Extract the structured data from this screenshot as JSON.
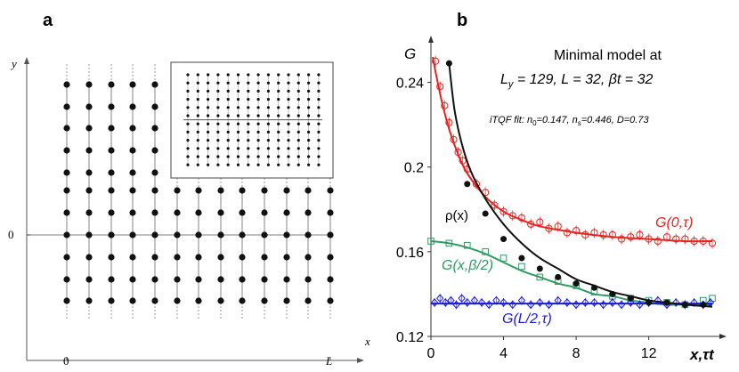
{
  "panel_a": {
    "label": "a",
    "x_axis_label": "x",
    "y_axis_label": "y",
    "x_tick_labels": [
      "0",
      "L"
    ],
    "y_tick_label": "0"
  },
  "panel_b": {
    "label": "b",
    "title_line1": "Minimal model at",
    "title_line2": "L",
    "title_line2_sub": "y",
    "title_line2_rest": " = 129, L = 32, βt = 32",
    "fit_prefix": "iTQF fit: ",
    "fit_params": "n0=0.147, ns=0.446, D=0.73",
    "fit_n0_name": "n",
    "fit_n0_sub": "0",
    "fit_n0_val": "=0.147, ",
    "fit_ns_name": "n",
    "fit_ns_sub": "s",
    "fit_ns_val": "=0.446, D=0.73",
    "colors": {
      "red": "#e8231f",
      "green": "#2f9a63",
      "blue": "#1a1ad6",
      "black": "#111111"
    }
  },
  "chart_data": [
    {
      "type": "lattice",
      "title": "a",
      "xlabel": "x",
      "ylabel": "y",
      "x_ticks": [
        "0",
        "L"
      ],
      "y_ticks": [
        "0"
      ],
      "columns_with_full_height": 5,
      "columns_total": 13,
      "rows_full": 11,
      "rows_right": 7
    },
    {
      "type": "line",
      "title": "Minimal model at Ly = 129, L = 32, βt = 32",
      "xlabel": "x,τt",
      "ylabel": "G",
      "xlim": [
        0,
        15.5
      ],
      "ylim": [
        0.12,
        0.26
      ],
      "x_ticks": [
        0,
        4,
        8,
        12
      ],
      "y_ticks": [
        0.12,
        0.16,
        0.2,
        0.24
      ],
      "y_tick_labels": [
        "0.12",
        "0.16",
        "0.2",
        "0.24"
      ],
      "x_tick_labels": [
        "0",
        "4",
        "8",
        "12"
      ],
      "series": [
        {
          "name": "G(0,τ)",
          "color": "#e8231f",
          "marker": "circle-open",
          "fit_x": [
            0.1,
            0.3,
            0.6,
            1.0,
            1.5,
            2.0,
            3.0,
            4.0,
            5.0,
            6.0,
            8.0,
            10.0,
            12.0,
            14.0,
            15.5
          ],
          "fit_y": [
            0.252,
            0.243,
            0.231,
            0.218,
            0.206,
            0.197,
            0.186,
            0.179,
            0.175,
            0.172,
            0.169,
            0.167,
            0.166,
            0.165,
            0.165
          ],
          "points_x": [
            0.25,
            0.5,
            0.75,
            1.0,
            1.25,
            1.5,
            1.75,
            2.0,
            2.5,
            3.0,
            3.5,
            4.0,
            4.5,
            5.0,
            5.5,
            6.0,
            6.5,
            7.0,
            7.5,
            8.0,
            8.5,
            9.0,
            9.5,
            10.0,
            10.5,
            11.0,
            11.5,
            12.0,
            12.5,
            13.0,
            13.5,
            14.0,
            14.5,
            15.0,
            15.5
          ],
          "points_y": [
            0.25,
            0.238,
            0.229,
            0.221,
            0.213,
            0.207,
            0.203,
            0.199,
            0.192,
            0.188,
            0.182,
            0.179,
            0.177,
            0.176,
            0.173,
            0.174,
            0.171,
            0.172,
            0.169,
            0.17,
            0.168,
            0.169,
            0.168,
            0.168,
            0.166,
            0.167,
            0.168,
            0.166,
            0.165,
            0.167,
            0.166,
            0.166,
            0.165,
            0.165,
            0.164
          ]
        },
        {
          "name": "ρ(x)",
          "color": "#111111",
          "marker": "circle-filled",
          "fit_x": [
            1.0,
            1.3,
            1.7,
            2.2,
            3.0,
            4.0,
            5.0,
            6.0,
            7.0,
            8.0,
            9.0,
            10.0,
            11.0,
            12.0,
            13.0,
            14.0,
            15.5
          ],
          "fit_y": [
            0.249,
            0.227,
            0.211,
            0.198,
            0.185,
            0.173,
            0.164,
            0.157,
            0.152,
            0.147,
            0.144,
            0.141,
            0.139,
            0.137,
            0.136,
            0.135,
            0.134
          ],
          "points_x": [
            1,
            2,
            3,
            4,
            5,
            6,
            7,
            8,
            9,
            10,
            11,
            12,
            13,
            14,
            15
          ],
          "points_y": [
            0.249,
            0.192,
            0.178,
            0.166,
            0.157,
            0.152,
            0.148,
            0.145,
            0.143,
            0.14,
            0.138,
            0.136,
            0.136,
            0.135,
            0.135
          ]
        },
        {
          "name": "G(x,β/2)",
          "color": "#2f9a63",
          "marker": "square-open",
          "fit_x": [
            0,
            1,
            2,
            3,
            4,
            5,
            6,
            7,
            8,
            9,
            10,
            11,
            12,
            13,
            14,
            15.5
          ],
          "fit_y": [
            0.165,
            0.164,
            0.162,
            0.159,
            0.155,
            0.151,
            0.148,
            0.145,
            0.143,
            0.14,
            0.139,
            0.137,
            0.136,
            0.135,
            0.135,
            0.135
          ],
          "points_x": [
            0,
            1,
            2,
            3,
            4,
            5,
            6,
            7,
            8,
            9,
            10,
            11,
            12,
            13,
            14,
            15,
            15.5
          ],
          "points_y": [
            0.165,
            0.164,
            0.163,
            0.16,
            0.157,
            0.153,
            0.148,
            0.146,
            0.144,
            0.141,
            0.139,
            0.138,
            0.137,
            0.136,
            0.135,
            0.137,
            0.138
          ]
        },
        {
          "name": "G(L/2,τ)",
          "color": "#1a1ad6",
          "marker": "diamond-open",
          "fit_x": [
            0,
            15.5
          ],
          "fit_y": [
            0.1355,
            0.1355
          ],
          "points_x": [
            0.2,
            0.5,
            0.8,
            1.1,
            1.4,
            1.7,
            2.0,
            2.4,
            2.8,
            3.2,
            3.6,
            4.0,
            4.5,
            5.0,
            5.5,
            6.0,
            6.5,
            7.0,
            7.5,
            8.0,
            8.5,
            9.0,
            9.5,
            10.0,
            10.5,
            11.0,
            11.5,
            12.0,
            12.5,
            13.0,
            13.5,
            14.0,
            14.5,
            15.0,
            15.4
          ],
          "points_y": [
            0.136,
            0.138,
            0.136,
            0.137,
            0.135,
            0.138,
            0.136,
            0.137,
            0.136,
            0.135,
            0.137,
            0.136,
            0.135,
            0.137,
            0.135,
            0.136,
            0.135,
            0.137,
            0.136,
            0.135,
            0.136,
            0.136,
            0.135,
            0.136,
            0.135,
            0.136,
            0.135,
            0.136,
            0.137,
            0.135,
            0.136,
            0.135,
            0.136,
            0.135,
            0.136
          ]
        }
      ]
    }
  ]
}
